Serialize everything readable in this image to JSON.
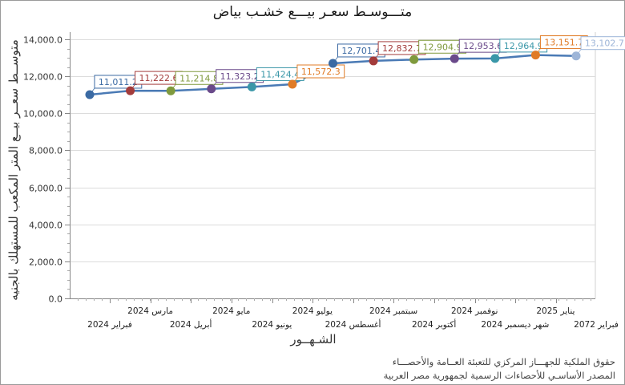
{
  "chart_data": {
    "type": "line",
    "title": "متـــوسـط سعـر بيـــع خشـب بياض",
    "xlabel": "الشـهــور",
    "ylabel": "متوســط سعــر بيــع المتر المكعب للمستهلك بالجنيه",
    "ylim": [
      0,
      14000
    ],
    "y_ticks": [
      "0.0",
      "2,000.0",
      "4,000.0",
      "6,000.0",
      "8,000.0",
      "10,000.0",
      "12,000.0",
      "14,000.0"
    ],
    "grid": true,
    "legend": "none",
    "categories": [
      "فبراير 2024",
      "مارس 2024",
      "أبريل 2024",
      "مايو 2024",
      "يونيو 2024",
      "يوليو 2024",
      "أغسطس 2024",
      "سبتمبر 2024",
      "أكتوبر 2024",
      "نوفمبر 2024",
      "شهر ديسمبر 2024",
      "يناير 2025",
      "فبراير 2072"
    ],
    "values": [
      11011.2,
      11222.6,
      11214.8,
      11323.2,
      11424.4,
      11572.3,
      12701.4,
      12832.7,
      12904.9,
      12953.6,
      12964.9,
      13151.7,
      13102.7
    ],
    "value_labels": [
      "11,011.2",
      "11,222.6",
      "11,214.8",
      "11,323.2",
      "11,424.4",
      "11,572.3",
      "12,701.4",
      "12,832.7",
      "12,904.9",
      "12,953.6",
      "12,964.9",
      "13,151.7",
      "13,102.7"
    ],
    "point_colors": [
      "#3b6aa3",
      "#a33b3b",
      "#7f9a3d",
      "#6a4a8a",
      "#3a97a8",
      "#e07b26",
      "#3b6aa3",
      "#a33b3b",
      "#7f9a3d",
      "#6a4a8a",
      "#3a97a8",
      "#e07b26",
      "#9db5d8"
    ],
    "line_color": "#4a7ab5"
  },
  "footer": {
    "line1": "حقوق الملكية للجهـــاز المركزي للتعبئة العــامة والأحصـــاء",
    "line2": "المصدر الأساسـي للأحصاءات الرسمية لجمهورية مصر العربية"
  }
}
